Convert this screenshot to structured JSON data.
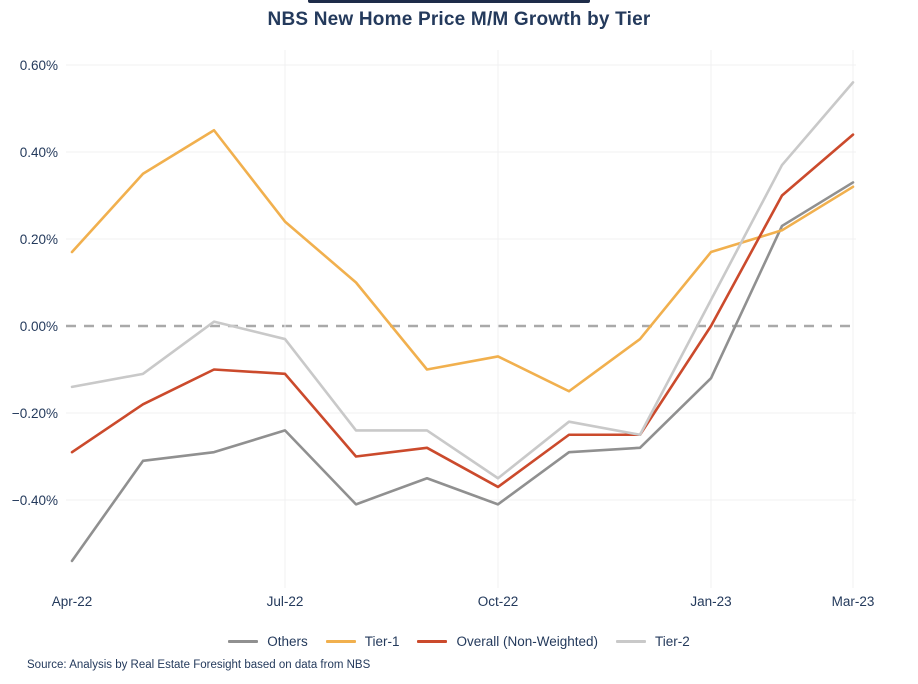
{
  "title": "NBS New Home Price M/M Growth by Tier",
  "source": "Source: Analysis by Real Estate Foresight based on data from NBS",
  "colors": {
    "text": "#243a5c",
    "top_bar": "#1e2c49",
    "grid": "#f0f0f2",
    "zero_line": "#a9a9a9",
    "background": "#ffffff"
  },
  "chart_data": {
    "type": "line",
    "title": "NBS New Home Price M/M Growth by Tier",
    "xlabel": "",
    "ylabel": "",
    "ylim": [
      -0.6,
      0.64
    ],
    "grid": true,
    "legend_position": "bottom",
    "x": [
      "Apr-22",
      "May-22",
      "Jun-22",
      "Jul-22",
      "Aug-22",
      "Sep-22",
      "Oct-22",
      "Nov-22",
      "Dec-22",
      "Jan-23",
      "Feb-23",
      "Mar-23"
    ],
    "x_ticks": [
      {
        "index": 0,
        "label": "Apr-22"
      },
      {
        "index": 3,
        "label": "Jul-22"
      },
      {
        "index": 6,
        "label": "Oct-22"
      },
      {
        "index": 9,
        "label": "Jan-23"
      },
      {
        "index": 11,
        "label": "Mar-23"
      }
    ],
    "y_ticks": [
      {
        "value": 0.6,
        "label": "0.60%"
      },
      {
        "value": 0.4,
        "label": "0.40%"
      },
      {
        "value": 0.2,
        "label": "0.20%"
      },
      {
        "value": 0.0,
        "label": "0.00%"
      },
      {
        "value": -0.2,
        "label": "−0.20%"
      },
      {
        "value": -0.4,
        "label": "−0.40%"
      }
    ],
    "zero_line": {
      "value": 0,
      "style": "dashed",
      "color": "#a9a9a9"
    },
    "units": "% m/m",
    "series": [
      {
        "name": "Others",
        "color": "#909090",
        "values": [
          -0.54,
          -0.31,
          -0.29,
          -0.24,
          -0.41,
          -0.35,
          -0.41,
          -0.29,
          -0.28,
          -0.12,
          0.23,
          0.33
        ]
      },
      {
        "name": "Tier-1",
        "color": "#f1b04e",
        "values": [
          0.17,
          0.35,
          0.45,
          0.24,
          0.1,
          -0.1,
          -0.07,
          -0.15,
          -0.03,
          0.17,
          0.22,
          0.32
        ]
      },
      {
        "name": "Overall (Non-Weighted)",
        "color": "#cb4a2c",
        "values": [
          -0.29,
          -0.18,
          -0.1,
          -0.11,
          -0.3,
          -0.28,
          -0.37,
          -0.25,
          -0.25,
          0.0,
          0.3,
          0.44
        ]
      },
      {
        "name": "Tier-2",
        "color": "#c9c9c9",
        "values": [
          -0.14,
          -0.11,
          0.01,
          -0.03,
          -0.24,
          -0.24,
          -0.35,
          -0.22,
          -0.25,
          0.06,
          0.37,
          0.56
        ]
      }
    ]
  }
}
